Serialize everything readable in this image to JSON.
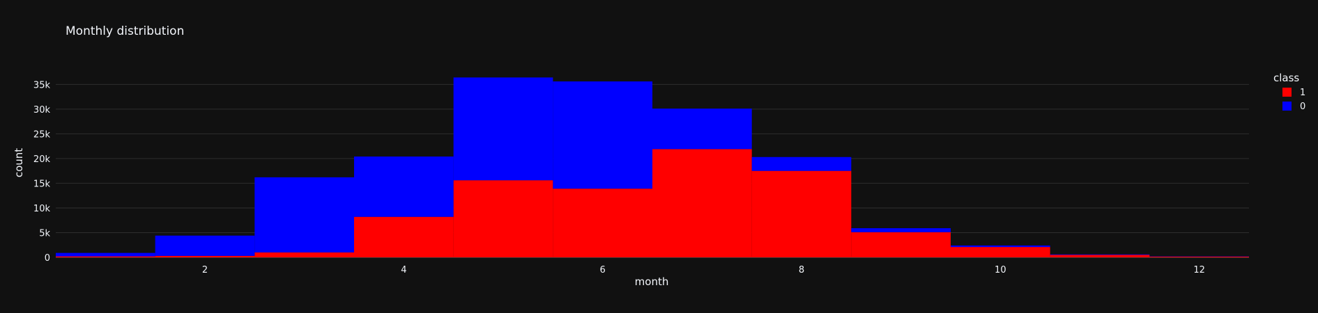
{
  "chart_data": {
    "type": "bar",
    "barmode": "stack",
    "title": "Monthly distribution",
    "xlabel": "month",
    "ylabel": "count",
    "x": [
      1,
      2,
      3,
      4,
      5,
      6,
      7,
      8,
      9,
      10,
      11,
      12
    ],
    "xlim": [
      0.5,
      12.5
    ],
    "ylim": [
      0,
      38000
    ],
    "xticks": [
      2,
      4,
      6,
      8,
      10,
      12
    ],
    "xtick_labels": [
      "2",
      "4",
      "6",
      "8",
      "10",
      "12"
    ],
    "yticks": [
      0,
      5000,
      10000,
      15000,
      20000,
      25000,
      30000,
      35000
    ],
    "ytick_labels": [
      "0",
      "5k",
      "10k",
      "15k",
      "20k",
      "25k",
      "30k",
      "35k"
    ],
    "grid": true,
    "legend": {
      "title": "class",
      "position": "top-right"
    },
    "series": [
      {
        "name": "1",
        "color": "#ff0000",
        "values": [
          200,
          300,
          1000,
          8200,
          15600,
          13900,
          21900,
          17500,
          5100,
          2100,
          500,
          150
        ]
      },
      {
        "name": "0",
        "color": "#0000ff",
        "values": [
          700,
          4100,
          15200,
          12200,
          20800,
          21700,
          8200,
          2800,
          800,
          300,
          100,
          50
        ]
      }
    ],
    "background": "#111111"
  }
}
